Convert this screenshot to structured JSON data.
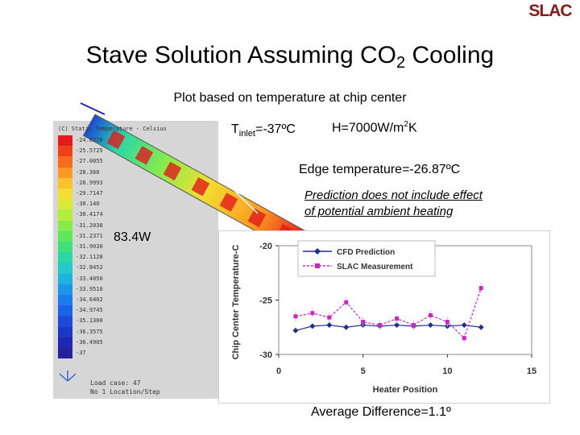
{
  "logo": {
    "text": "SLAC",
    "color": "#8c1515"
  },
  "slide": {
    "title_main": "Stave Solution Assuming CO",
    "title_sub": "2",
    "title_tail": " Cooling",
    "subtitle": "Plot based on temperature at chip center",
    "tinlet_prefix": "T",
    "tinlet_sub": "inlet",
    "tinlet_value": "=-37ºC",
    "h_prefix": "H=7000W/m",
    "h_sup": "2",
    "h_suffix": "K",
    "edge_temp": "Edge temperature=-26.87ºC",
    "note_line1": "Prediction does not include effect",
    "note_line2": "of potential ambient heating",
    "power": "83.4W",
    "avg_diff": "Average Difference=1.1º"
  },
  "fea": {
    "legend_header": "(C) Static Temperature - Celsius",
    "contour_labels": [
      "-24.8770",
      "-25.5725",
      "-27.0055",
      "-28.360",
      "-28.9993",
      "-29.7147",
      "-30.140",
      "-30.4174",
      "-31.2038",
      "-31.2371",
      "-31.9030",
      "-32.1128",
      "-32.8452",
      "-33.4050",
      "-33.9510",
      "-34.6402",
      "-34.9745",
      "-35.1300",
      "-36.3575",
      "-36.4905",
      "-37"
    ],
    "contour_colors": [
      "#e41a1c",
      "#f0401a",
      "#f86b1a",
      "#fb9a22",
      "#fcc22a",
      "#f3de31",
      "#d8ec36",
      "#b3ee3f",
      "#86ec4a",
      "#5ee857",
      "#3fe27a",
      "#2bd8a3",
      "#24c9c9",
      "#1fb2df",
      "#1b97ea",
      "#1a7ced",
      "#1a62e6",
      "#1b4bd8",
      "#1d37c7",
      "#2028b2",
      "#25209c"
    ],
    "load_line1": "Load case: 47",
    "load_line2": "No 1 Location/Step"
  },
  "chart_data": {
    "type": "line",
    "title": "",
    "xlabel": "Heater Position",
    "ylabel": "Chip Center Temperature-C",
    "xlim": [
      0,
      15
    ],
    "ylim": [
      -30,
      -20
    ],
    "xticks": [
      "0",
      "5",
      "10",
      "15"
    ],
    "yticks": [
      "-20",
      "-25",
      "-30"
    ],
    "legend_position": "top",
    "series": [
      {
        "name": "CFD Prediction",
        "color": "#1f2f8f",
        "marker": "diamond",
        "x": [
          1,
          2,
          3,
          4,
          5,
          6,
          7,
          8,
          9,
          10,
          11,
          12
        ],
        "y": [
          -27.8,
          -27.4,
          -27.3,
          -27.5,
          -27.3,
          -27.4,
          -27.3,
          -27.4,
          -27.3,
          -27.4,
          -27.3,
          -27.5
        ]
      },
      {
        "name": "SLAC Measurement",
        "color": "#d020c8",
        "marker": "square",
        "x": [
          1,
          2,
          3,
          4,
          5,
          6,
          7,
          8,
          9,
          10,
          11,
          12
        ],
        "y": [
          -26.5,
          -26.2,
          -26.6,
          -25.2,
          -27.0,
          -27.3,
          -26.7,
          -27.3,
          -26.4,
          -27.0,
          -28.5,
          -23.9
        ]
      }
    ]
  }
}
